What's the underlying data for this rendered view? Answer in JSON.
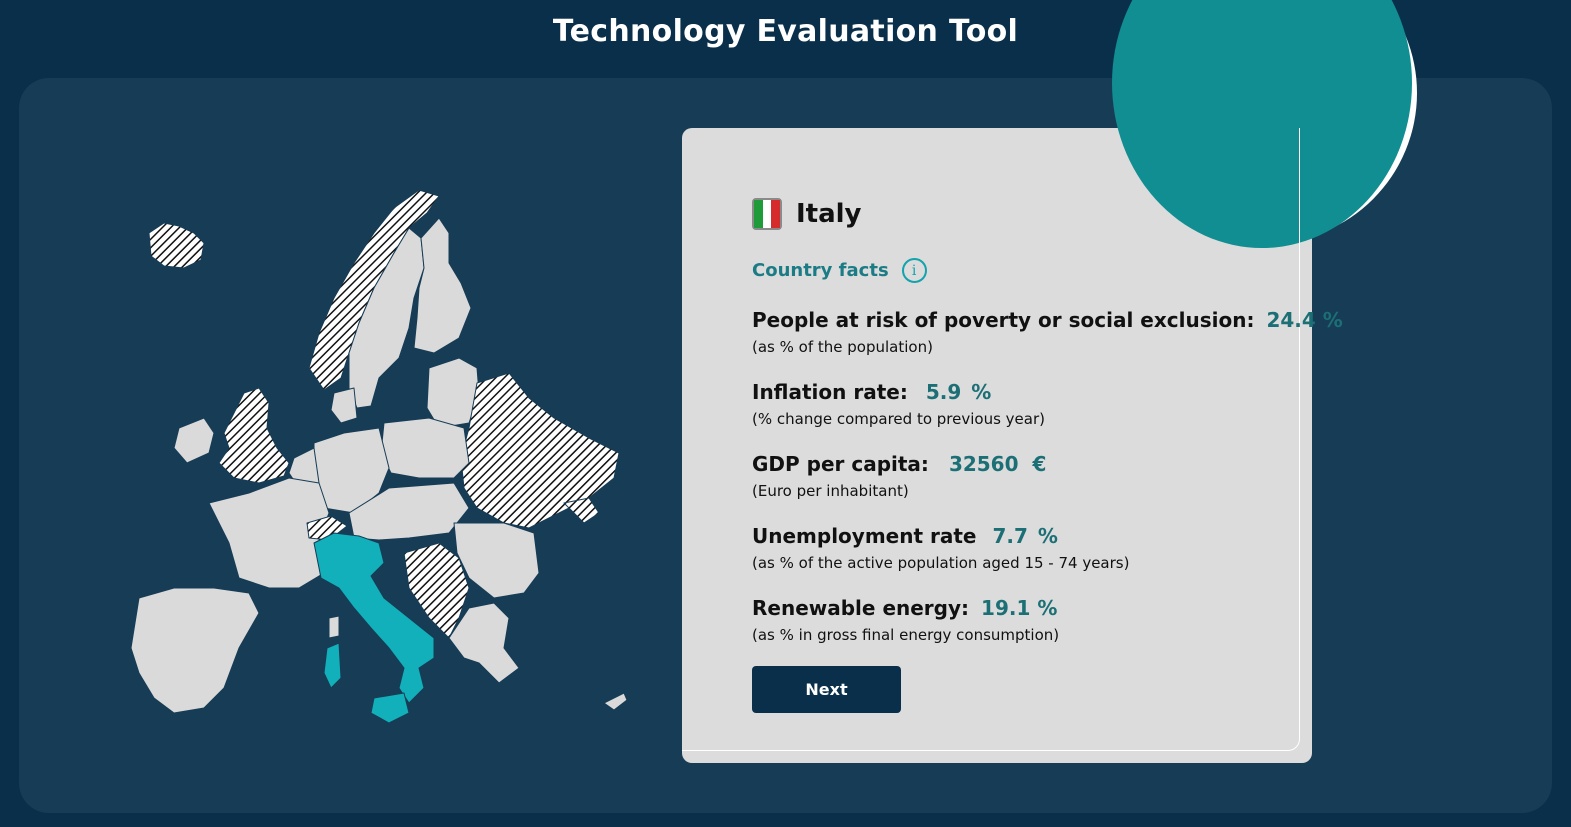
{
  "app": {
    "title": "Technology Evaluation Tool"
  },
  "map": {
    "highlighted_country": "Italy",
    "highlight_color": "#12b0ba",
    "country_fill": "#dadada",
    "excluded_pattern": "hatched"
  },
  "card": {
    "country": "Italy",
    "flag_colors": [
      "#1f9b3a",
      "#ffffff",
      "#d62b2b"
    ],
    "facts_label": "Country facts",
    "info_icon": "info-icon",
    "facts": [
      {
        "label": "People at risk of poverty or social exclusion:",
        "value": "24.4 %",
        "unit": "",
        "note": "(as % of the population)"
      },
      {
        "label": "Inflation rate:",
        "value": "5.9",
        "unit": "%",
        "note": "(% change compared to previous year)"
      },
      {
        "label": "GDP per capita:",
        "value": "32560",
        "unit": "€",
        "note": "(Euro per inhabitant)"
      },
      {
        "label": "Unemployment rate",
        "value": "7.7",
        "unit": "%",
        "note": "(as % of the active population aged 15 - 74 years)"
      },
      {
        "label": "Renewable energy:",
        "value": "19.1 %",
        "unit": "",
        "note": "(as % in gross final energy consumption)"
      }
    ],
    "next_label": "Next"
  },
  "colors": {
    "background": "#0a2f4a",
    "panel": "#173c56",
    "card": "#dcdcdc",
    "accent": "#108e92",
    "value_text": "#1b6f75"
  }
}
